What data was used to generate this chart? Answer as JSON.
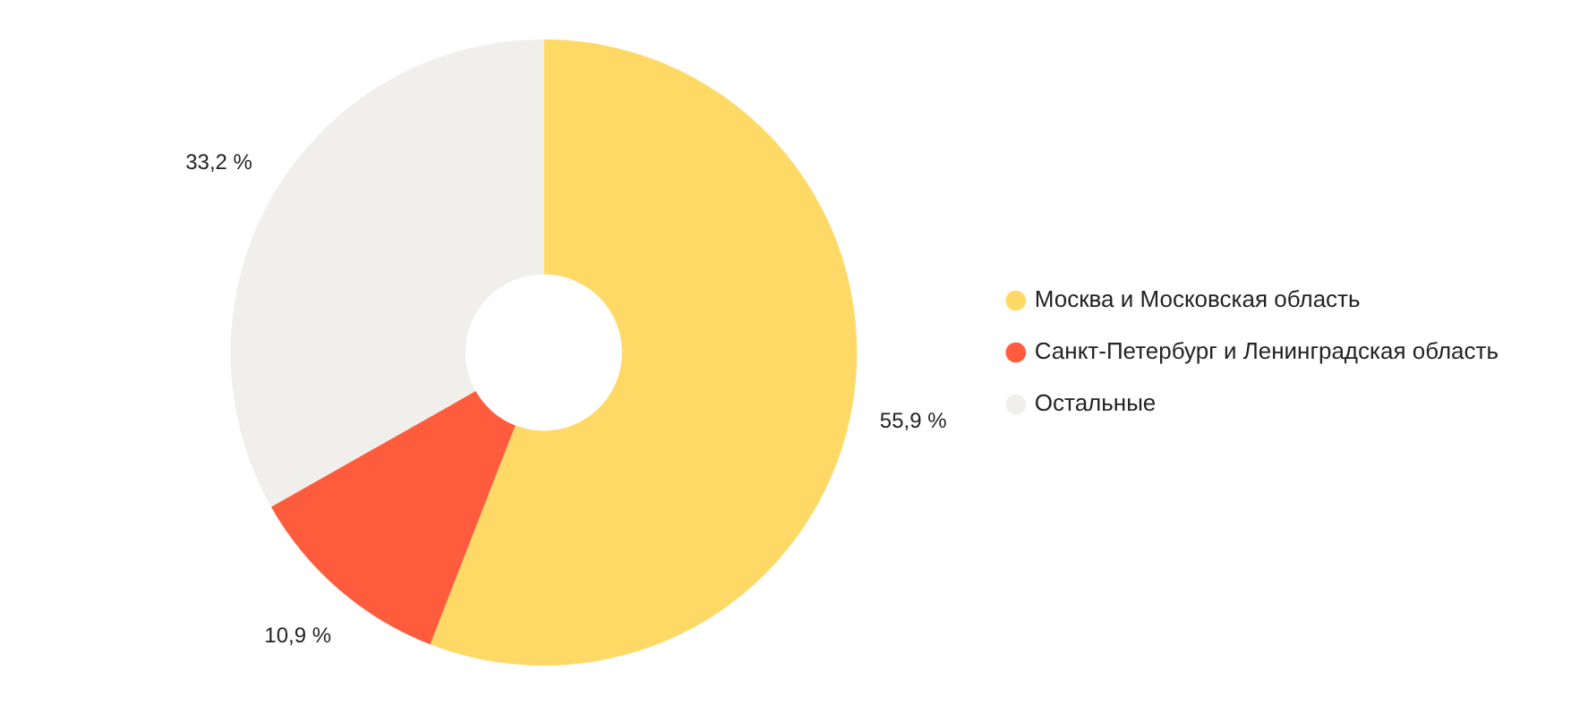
{
  "chart_data": {
    "type": "donut",
    "categories": [
      "Москва и Московская область",
      "Санкт-Петербург и Ленинградская область",
      "Остальные"
    ],
    "values": [
      55.9,
      10.9,
      33.2
    ],
    "colors": [
      "#ffd966",
      "#ff5b3d",
      "#f0efeb"
    ],
    "value_labels": [
      "55,9 %",
      "10,9 %",
      "33,2 %"
    ],
    "legend": "right"
  }
}
